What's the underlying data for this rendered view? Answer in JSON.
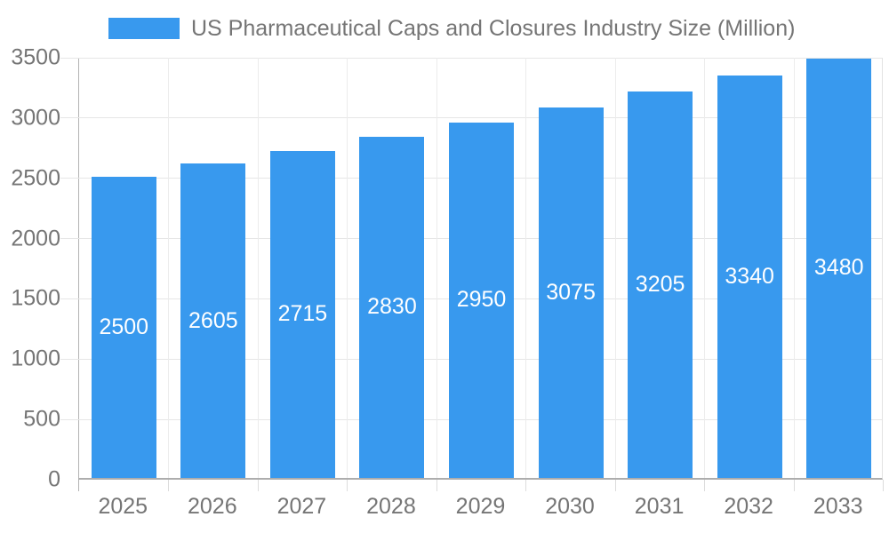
{
  "legend": {
    "label": "US Pharmaceutical Caps and Closures Industry Size (Million)",
    "swatch_color": "#3899EE"
  },
  "chart_data": {
    "type": "bar",
    "title": "US Pharmaceutical Caps and Closures Industry Size (Million)",
    "categories": [
      "2025",
      "2026",
      "2027",
      "2028",
      "2029",
      "2030",
      "2031",
      "2032",
      "2033"
    ],
    "values": [
      2500,
      2605,
      2715,
      2830,
      2950,
      3075,
      3205,
      3340,
      3480
    ],
    "series": [
      {
        "name": "US Pharmaceutical Caps and Closures Industry Size (Million)",
        "values": [
          2500,
          2605,
          2715,
          2830,
          2950,
          3075,
          3205,
          3340,
          3480
        ]
      }
    ],
    "xlabel": "",
    "ylabel": "",
    "ylim": [
      0,
      3500
    ],
    "yticks": [
      0,
      500,
      1000,
      1500,
      2000,
      2500,
      3000,
      3500
    ],
    "legend_position": "top",
    "grid": true,
    "value_label_position": "inside-center",
    "colors": {
      "bar": "#3899EE",
      "bar_label": "#FFFFFF",
      "axis_text": "#757575",
      "axis_line": "#ADADAD",
      "y_axis_line": "#B3B3B3",
      "gridline": "#E6E6E6",
      "band_line": "#ECECEC",
      "plot_right_border": "#E3E3E3",
      "background": "#FFFFFF"
    }
  }
}
